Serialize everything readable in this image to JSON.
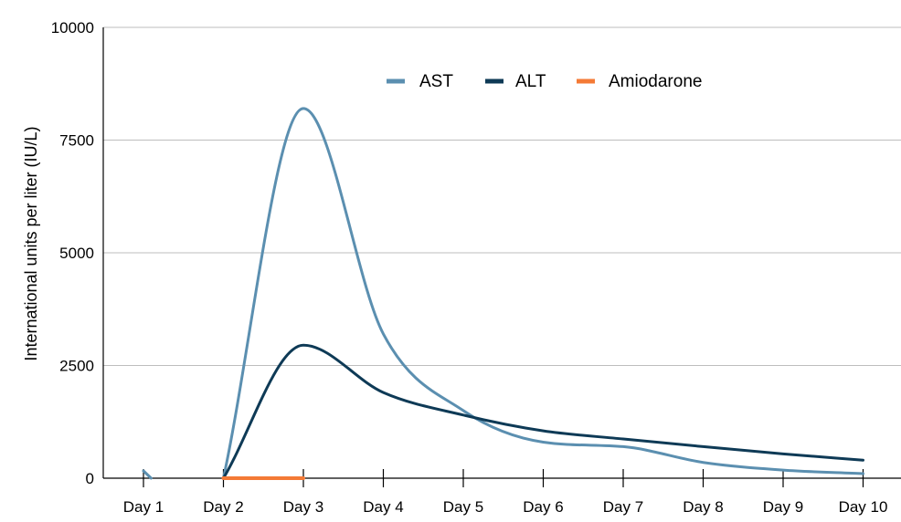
{
  "chart_data": {
    "type": "line",
    "ylabel": "International units per liter (IU/L)",
    "ylim": [
      0,
      10000
    ],
    "yticks": [
      "0",
      "2500",
      "5000",
      "7500",
      "10000"
    ],
    "grid": true,
    "legend_position": "top-center",
    "categories": [
      "Day 1",
      "Day 2",
      "Day 3",
      "Day 4",
      "Day 5",
      "Day 6",
      "Day 7",
      "Day 8",
      "Day 9",
      "Day 10"
    ],
    "series": [
      {
        "name": "AST",
        "color": "#5b8fb0",
        "points": [
          {
            "x": 1,
            "y": 0
          },
          {
            "x": 1.05,
            "y": 0
          },
          {
            "x": 2,
            "y": 0
          },
          {
            "x": 3,
            "y": 8200
          },
          {
            "x": 4,
            "y": 3200
          },
          {
            "x": 5,
            "y": 1500
          },
          {
            "x": 6,
            "y": 800
          },
          {
            "x": 7,
            "y": 700
          },
          {
            "x": 8,
            "y": 350
          },
          {
            "x": 9,
            "y": 180
          },
          {
            "x": 10,
            "y": 100
          }
        ]
      },
      {
        "name": "ALT",
        "color": "#0e3a56",
        "points": [
          {
            "x": 2,
            "y": 0
          },
          {
            "x": 3,
            "y": 2950
          },
          {
            "x": 4,
            "y": 1900
          },
          {
            "x": 5,
            "y": 1400
          },
          {
            "x": 6,
            "y": 1050
          },
          {
            "x": 7,
            "y": 870
          },
          {
            "x": 8,
            "y": 700
          },
          {
            "x": 9,
            "y": 540
          },
          {
            "x": 10,
            "y": 400
          }
        ]
      },
      {
        "name": "Amiodarone",
        "color": "#f47a36",
        "points": [
          {
            "x": 2,
            "y": 0
          },
          {
            "x": 3,
            "y": 0
          }
        ]
      }
    ]
  }
}
